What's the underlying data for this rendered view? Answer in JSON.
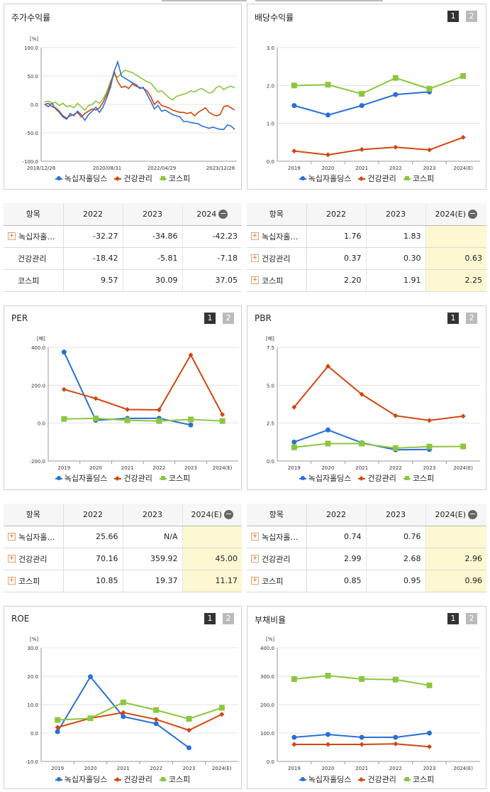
{
  "colors": {
    "blue": "#2a6fd6",
    "red": "#d2460f",
    "green": "#8cc63e"
  },
  "pager": {
    "one": "1",
    "two": "2"
  },
  "legend": {
    "s1": "녹십자홀딩스",
    "s2": "건강관리",
    "s3": "코스피"
  },
  "stock_chart": {
    "title": "주가수익률",
    "unit": "[%]",
    "y_ticks": [
      "100.0",
      "50.0",
      "0.0",
      "-50.0",
      "-100.0"
    ],
    "x_ticks": [
      "2018/12/28",
      "2020/08/31",
      "2022/04/29",
      "2023/12/28"
    ]
  },
  "div_chart": {
    "title": "배당수익률",
    "y_ticks": [
      "3.0",
      "2.0",
      "1.0",
      "0.0"
    ],
    "x_ticks": [
      "2019",
      "2020",
      "2021",
      "2022",
      "2023",
      "2024(E)"
    ]
  },
  "per_chart": {
    "title": "PER",
    "unit": "[배]",
    "y_ticks": [
      "400.0",
      "200.0",
      "0.0",
      "-200.0"
    ],
    "x_ticks": [
      "2019",
      "2020",
      "2021",
      "2022",
      "2023",
      "2024(E)"
    ]
  },
  "pbr_chart": {
    "title": "PBR",
    "unit": "[배]",
    "y_ticks": [
      "7.5",
      "5.0",
      "2.5",
      "0.0"
    ],
    "x_ticks": [
      "2019",
      "2020",
      "2021",
      "2022",
      "2023",
      "2024(E)"
    ]
  },
  "roe_chart": {
    "title": "ROE",
    "unit": "[%]",
    "y_ticks": [
      "30.0",
      "20.0",
      "10.0",
      "0.0",
      "-10.0"
    ],
    "x_ticks": [
      "2019",
      "2020",
      "2021",
      "2022",
      "2023",
      "2024(E)"
    ]
  },
  "debt_chart": {
    "title": "부채비율",
    "unit": "[%]",
    "y_ticks": [
      "400.0",
      "300.0",
      "200.0",
      "100.0",
      "0.0"
    ],
    "x_ticks": [
      "2019",
      "2020",
      "2021",
      "2022",
      "2023",
      "2024(E)"
    ]
  },
  "table_stock": {
    "headers": [
      "항목",
      "2022",
      "2023",
      "2024"
    ],
    "rows": [
      {
        "name": "녹십자홀…",
        "v": [
          "-32.27",
          "-34.86",
          "-42.23"
        ]
      },
      {
        "name": "건강관리",
        "v": [
          "-18.42",
          "-5.81",
          "-7.18"
        ]
      },
      {
        "name": "코스피",
        "v": [
          "9.57",
          "30.09",
          "37.05"
        ]
      }
    ]
  },
  "table_div": {
    "headers": [
      "항목",
      "2022",
      "2023",
      "2024(E)"
    ],
    "rows": [
      {
        "name": "녹십자홀…",
        "v": [
          "1.76",
          "1.83",
          ""
        ]
      },
      {
        "name": "건강관리",
        "v": [
          "0.37",
          "0.30",
          "0.63"
        ]
      },
      {
        "name": "코스피",
        "v": [
          "2.20",
          "1.91",
          "2.25"
        ]
      }
    ]
  },
  "table_per": {
    "headers": [
      "항목",
      "2022",
      "2023",
      "2024(E)"
    ],
    "rows": [
      {
        "name": "녹십자홀…",
        "v": [
          "25.66",
          "N/A",
          ""
        ]
      },
      {
        "name": "건강관리",
        "v": [
          "70.16",
          "359.92",
          "45.00"
        ]
      },
      {
        "name": "코스피",
        "v": [
          "10.85",
          "19.37",
          "11.17"
        ]
      }
    ]
  },
  "table_pbr": {
    "headers": [
      "항목",
      "2022",
      "2023",
      "2024(E)"
    ],
    "rows": [
      {
        "name": "녹십자홀…",
        "v": [
          "0.74",
          "0.76",
          ""
        ]
      },
      {
        "name": "건강관리",
        "v": [
          "2.99",
          "2.68",
          "2.96"
        ]
      },
      {
        "name": "코스피",
        "v": [
          "0.85",
          "0.95",
          "0.96"
        ]
      }
    ]
  },
  "chart_data": [
    {
      "type": "line",
      "title": "주가수익률",
      "ylabel": "[%]",
      "ylim": [
        -100,
        100
      ],
      "x_ticks": [
        "2018/12/28",
        "2020/08/31",
        "2022/04/29",
        "2023/12/28"
      ],
      "series": [
        {
          "name": "녹십자홀딩스",
          "values": [
            0,
            -4,
            2,
            -8,
            -14,
            -22,
            -26,
            -16,
            -20,
            -12,
            -18,
            -28,
            -18,
            -12,
            -5,
            -14,
            -4,
            12,
            30,
            58,
            75,
            50,
            46,
            42,
            38,
            35,
            28,
            30,
            18,
            6,
            -8,
            -2,
            -12,
            -10,
            -14,
            -18,
            -20,
            -22,
            -30,
            -30,
            -32,
            -33,
            -34,
            -38,
            -40,
            -42,
            -40,
            -42,
            -44,
            -44,
            -36,
            -38,
            -44
          ]
        },
        {
          "name": "건강관리",
          "values": [
            0,
            2,
            -4,
            -6,
            -12,
            -20,
            -24,
            -20,
            -18,
            -14,
            -22,
            -16,
            -12,
            -8,
            -10,
            -6,
            4,
            18,
            36,
            58,
            40,
            30,
            32,
            28,
            36,
            32,
            30,
            28,
            24,
            14,
            0,
            6,
            -2,
            -4,
            -6,
            -10,
            -12,
            -14,
            -14,
            -16,
            -14,
            -20,
            -14,
            -10,
            -6,
            -14,
            -18,
            -20,
            -18,
            -4,
            -2,
            -6,
            -10
          ]
        },
        {
          "name": "코스피",
          "values": [
            4,
            6,
            2,
            4,
            -2,
            2,
            -4,
            -2,
            -6,
            2,
            -4,
            -10,
            -2,
            0,
            6,
            2,
            10,
            22,
            40,
            52,
            48,
            55,
            60,
            58,
            56,
            52,
            48,
            44,
            40,
            38,
            30,
            22,
            24,
            18,
            12,
            8,
            14,
            16,
            18,
            20,
            24,
            22,
            26,
            28,
            24,
            20,
            22,
            30,
            32,
            26,
            30,
            32,
            29
          ]
        }
      ]
    },
    {
      "type": "line",
      "title": "배당수익률",
      "ylim": [
        0,
        3
      ],
      "x": [
        "2019",
        "2020",
        "2021",
        "2022",
        "2023",
        "2024(E)"
      ],
      "series": [
        {
          "name": "녹십자홀딩스",
          "values": [
            1.47,
            1.22,
            1.47,
            1.76,
            1.83,
            null
          ]
        },
        {
          "name": "건강관리",
          "values": [
            0.27,
            0.17,
            0.31,
            0.37,
            0.3,
            0.63
          ]
        },
        {
          "name": "코스피",
          "values": [
            2.0,
            2.02,
            1.78,
            2.2,
            1.91,
            2.25
          ]
        }
      ]
    },
    {
      "type": "line",
      "title": "PER",
      "ylabel": "[배]",
      "ylim": [
        -200,
        400
      ],
      "x": [
        "2019",
        "2020",
        "2021",
        "2022",
        "2023",
        "2024(E)"
      ],
      "series": [
        {
          "name": "녹십자홀딩스",
          "values": [
            375,
            15,
            25,
            25.66,
            -10,
            null
          ]
        },
        {
          "name": "건강관리",
          "values": [
            178,
            130,
            72,
            70.16,
            359.92,
            45.0
          ]
        },
        {
          "name": "코스피",
          "values": [
            22,
            25,
            15,
            10.85,
            19.37,
            11.17
          ]
        }
      ]
    },
    {
      "type": "line",
      "title": "PBR",
      "ylabel": "[배]",
      "ylim": [
        0,
        7.5
      ],
      "x": [
        "2019",
        "2020",
        "2021",
        "2022",
        "2023",
        "2024(E)"
      ],
      "series": [
        {
          "name": "녹십자홀딩스",
          "values": [
            1.25,
            2.05,
            1.2,
            0.74,
            0.76,
            null
          ]
        },
        {
          "name": "건강관리",
          "values": [
            3.55,
            6.25,
            4.4,
            2.99,
            2.68,
            2.96
          ]
        },
        {
          "name": "코스피",
          "values": [
            0.9,
            1.15,
            1.15,
            0.85,
            0.95,
            0.96
          ]
        }
      ]
    },
    {
      "type": "line",
      "title": "ROE",
      "ylabel": "[%]",
      "ylim": [
        -10,
        30
      ],
      "x": [
        "2019",
        "2020",
        "2021",
        "2022",
        "2023",
        "2024(E)"
      ],
      "series": [
        {
          "name": "녹십자홀딩스",
          "values": [
            0.5,
            19.8,
            5.8,
            3.3,
            -5.2,
            null
          ]
        },
        {
          "name": "건강관리",
          "values": [
            2.0,
            5.2,
            7.2,
            4.8,
            1.0,
            6.6
          ]
        },
        {
          "name": "코스피",
          "values": [
            4.6,
            5.2,
            10.8,
            8.1,
            5.0,
            8.9
          ]
        }
      ]
    },
    {
      "type": "line",
      "title": "부채비율",
      "ylabel": "[%]",
      "ylim": [
        0,
        400
      ],
      "x": [
        "2019",
        "2020",
        "2021",
        "2022",
        "2023",
        "2024(E)"
      ],
      "series": [
        {
          "name": "녹십자홀딩스",
          "values": [
            85,
            95,
            85,
            85,
            100,
            null
          ]
        },
        {
          "name": "건강관리",
          "values": [
            60,
            60,
            60,
            62,
            52,
            null
          ]
        },
        {
          "name": "코스피",
          "values": [
            290,
            302,
            290,
            288,
            268,
            null
          ]
        }
      ]
    }
  ]
}
